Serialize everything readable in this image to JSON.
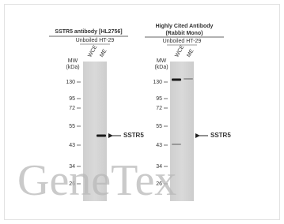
{
  "panels": [
    {
      "title": [
        "SSTR5 antibody [HL2756]"
      ],
      "sample": "Unboiled HT-29",
      "lanes": [
        "WCE",
        "ME"
      ],
      "mw_label": [
        "MW",
        "(kDa)"
      ],
      "markers": [
        130,
        95,
        72,
        55,
        43,
        34,
        26
      ],
      "target": "SSTR5"
    },
    {
      "title": [
        "Highly Cited Antibody",
        "(Rabbit Mono)"
      ],
      "sample": "Unboiled HT-29",
      "lanes": [
        "WCE",
        "ME"
      ],
      "mw_label": [
        "MW",
        "(kDa)"
      ],
      "markers": [
        130,
        95,
        72,
        55,
        43,
        34,
        26
      ],
      "target": "SSTR5"
    }
  ],
  "watermark": "GeneTex"
}
